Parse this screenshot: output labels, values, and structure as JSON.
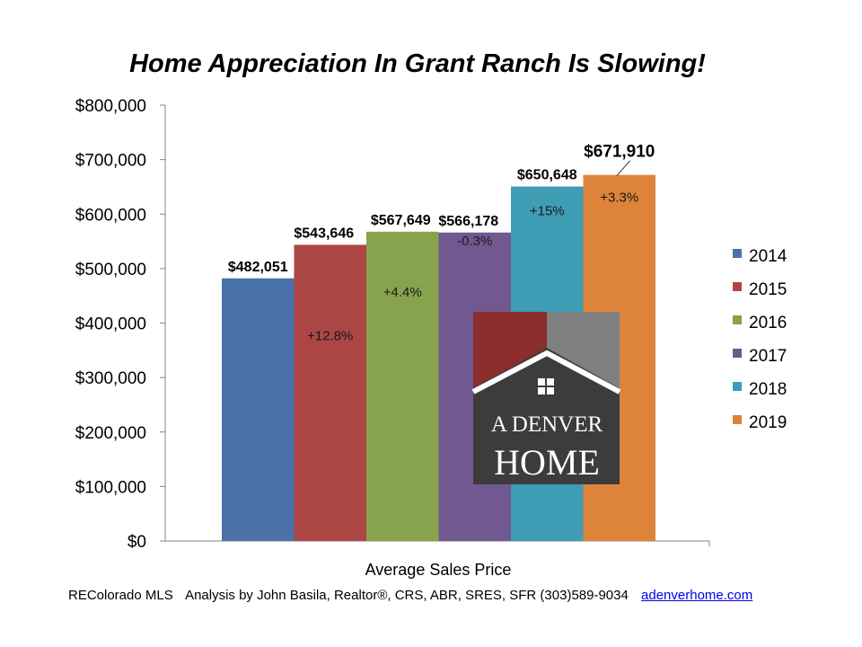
{
  "chart_data": {
    "type": "bar",
    "title": "Home Appreciation In Grant Ranch Is Slowing!",
    "xlabel": "Average Sales Price",
    "ylabel": "",
    "ylim": [
      0,
      800000
    ],
    "yticks": [
      "$0",
      "$100,000",
      "$200,000",
      "$300,000",
      "$400,000",
      "$500,000",
      "$600,000",
      "$700,000",
      "$800,000"
    ],
    "categories": [
      "Average Sales Price"
    ],
    "legend_position": "right",
    "grid": false,
    "series": [
      {
        "name": "2014",
        "value": 482051,
        "label": "$482,051",
        "change": "",
        "color": "#4a72a8"
      },
      {
        "name": "2015",
        "value": 543646,
        "label": "$543,646",
        "change": "+12.8%",
        "color": "#ab4645"
      },
      {
        "name": "2016",
        "value": 567649,
        "label": "$567,649",
        "change": "+4.4%",
        "color": "#88a34e"
      },
      {
        "name": "2017",
        "value": 566178,
        "label": "$566,178",
        "change": "-0.3%",
        "color": "#715890"
      },
      {
        "name": "2018",
        "value": 650648,
        "label": "$650,648",
        "change": "+15%",
        "color": "#3e9cb5"
      },
      {
        "name": "2019",
        "value": 671910,
        "label": "$671,910",
        "change": "+3.3%",
        "color": "#dd843a"
      }
    ]
  },
  "logo": {
    "line1": "A DENVER",
    "line2": "HOME",
    "colors": {
      "red": "#8b2c2d",
      "gray": "#808080",
      "dark": "#3c3c3c"
    }
  },
  "footer": {
    "source": "REColorado MLS",
    "analysis": "Analysis by John Basila, Realtor®, CRS, ABR, SRES, SFR (303)589-9034",
    "link": "adenverhome.com"
  }
}
